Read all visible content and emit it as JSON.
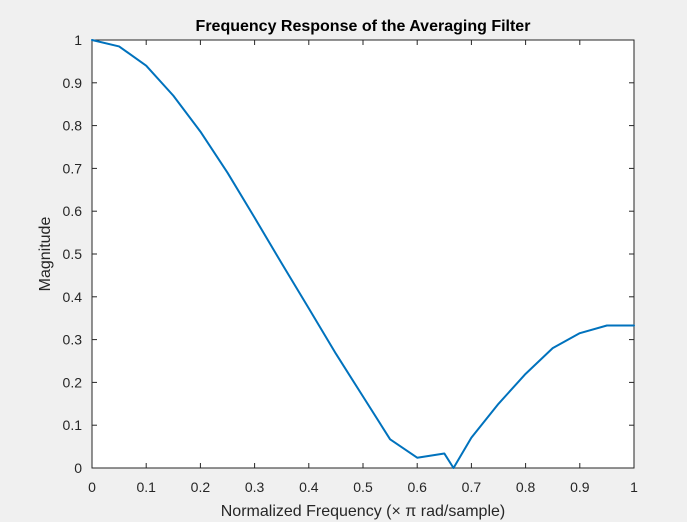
{
  "chart_data": {
    "type": "line",
    "title": "Frequency Response of the Averaging Filter",
    "xlabel": "Normalized Frequency (× π rad/sample)",
    "ylabel": "Magnitude",
    "xlim": [
      0,
      1
    ],
    "ylim": [
      0,
      1
    ],
    "xticks": [
      "0",
      "0.1",
      "0.2",
      "0.3",
      "0.4",
      "0.5",
      "0.6",
      "0.7",
      "0.8",
      "0.9",
      "1"
    ],
    "yticks": [
      "0",
      "0.1",
      "0.2",
      "0.3",
      "0.4",
      "0.5",
      "0.6",
      "0.7",
      "0.8",
      "0.9",
      "1"
    ],
    "grid": false,
    "series": [
      {
        "color": "#0072bd",
        "x": [
          0,
          0.05,
          0.1,
          0.15,
          0.2,
          0.25,
          0.3,
          0.35,
          0.4,
          0.45,
          0.5,
          0.55,
          0.6,
          0.65,
          0.667,
          0.7,
          0.75,
          0.8,
          0.85,
          0.9,
          0.95,
          1.0
        ],
        "y": [
          1.0,
          0.985,
          0.94,
          0.87,
          0.786,
          0.69,
          0.585,
          0.478,
          0.373,
          0.267,
          0.167,
          0.067,
          0.024,
          0.034,
          0.0,
          0.071,
          0.15,
          0.22,
          0.28,
          0.315,
          0.333,
          0.333
        ]
      }
    ]
  },
  "colors": {
    "figure_background": "#f0f0f0",
    "axes_background": "#ffffff",
    "axis_color": "#262626",
    "line_color": "#0072bd"
  }
}
